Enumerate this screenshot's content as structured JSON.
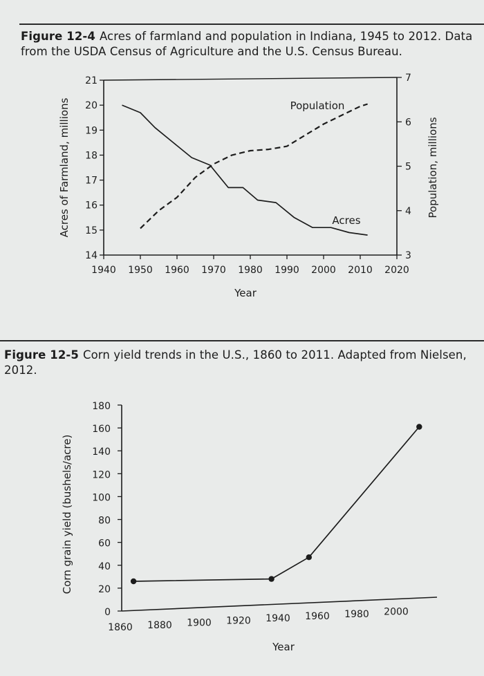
{
  "figures": [
    {
      "number": "Figure 12-4",
      "caption": "Acres of farmland and population in Indiana, 1945 to 2012. Data from the USDA Census of Agriculture and the U.S. Census Bureau."
    },
    {
      "number": "Figure 12-5",
      "caption": "Corn yield trends in the U.S., 1860 to 2011. Adapted from Nielsen, 2012."
    }
  ],
  "chart_data": [
    {
      "type": "line",
      "title": "Acres of farmland and population in Indiana, 1945 to 2012",
      "xlabel": "Year",
      "ylabel": "Acres of Farmland, millions",
      "y2label": "Population, millions",
      "xlim": [
        1940,
        2020
      ],
      "ylim": [
        14,
        21
      ],
      "y2lim": [
        3,
        7
      ],
      "xticks": [
        1940,
        1950,
        1960,
        1970,
        1980,
        1990,
        2000,
        2010,
        2020
      ],
      "yticks": [
        14,
        15,
        16,
        17,
        18,
        19,
        20,
        21
      ],
      "y2ticks": [
        3,
        4,
        5,
        6,
        7
      ],
      "series": [
        {
          "name": "Acres",
          "axis": "left",
          "style": "solid",
          "x": [
            1945,
            1950,
            1954,
            1959,
            1964,
            1969,
            1974,
            1978,
            1982,
            1987,
            1992,
            1997,
            2002,
            2007,
            2012
          ],
          "values": [
            20.0,
            19.7,
            19.1,
            18.5,
            17.9,
            17.6,
            16.7,
            16.7,
            16.2,
            16.1,
            15.5,
            15.1,
            15.1,
            14.9,
            14.8
          ]
        },
        {
          "name": "Population",
          "axis": "right",
          "style": "dashed",
          "x": [
            1950,
            1955,
            1960,
            1965,
            1970,
            1975,
            1980,
            1985,
            1990,
            1995,
            2000,
            2005,
            2010,
            2012
          ],
          "values": [
            3.6,
            4.0,
            4.3,
            4.75,
            5.05,
            5.25,
            5.35,
            5.38,
            5.45,
            5.7,
            5.95,
            6.15,
            6.35,
            6.4
          ]
        }
      ]
    },
    {
      "type": "line",
      "title": "Corn yield trends in the U.S., 1860 to 2011",
      "xlabel": "Year",
      "ylabel": "Corn grain yield (bushels/acre)",
      "xlim": [
        1860,
        2020
      ],
      "ylim": [
        0,
        180
      ],
      "xticks": [
        1860,
        1880,
        1900,
        1920,
        1940,
        1960,
        1980,
        2000
      ],
      "yticks": [
        0,
        20,
        40,
        60,
        80,
        100,
        120,
        140,
        160,
        180
      ],
      "series": [
        {
          "name": "Corn yield",
          "style": "solid",
          "x": [
            1866,
            1936,
            1955,
            2011
          ],
          "values": [
            26,
            28,
            47,
            161
          ],
          "markers": [
            true,
            true,
            true,
            true
          ]
        }
      ]
    }
  ]
}
